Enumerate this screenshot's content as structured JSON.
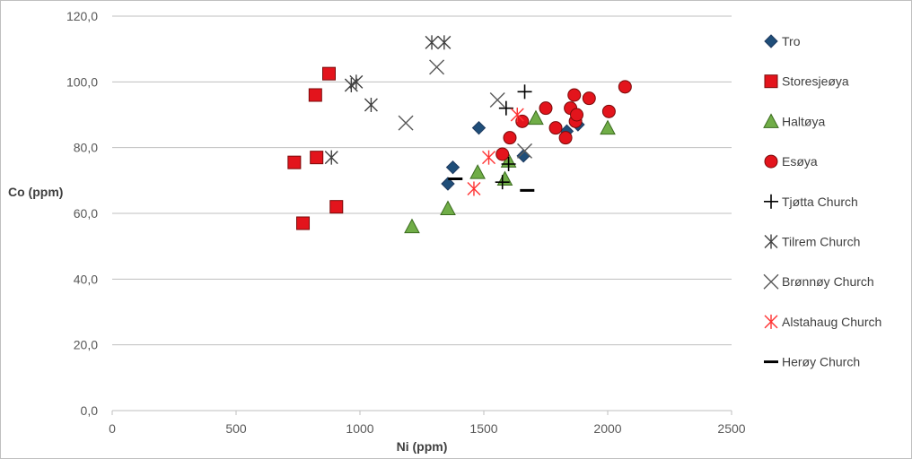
{
  "chart_data": {
    "type": "scatter",
    "title": "",
    "xlabel": "Ni (ppm)",
    "ylabel": "Co (ppm)",
    "xlim": [
      0,
      2500
    ],
    "ylim": [
      0,
      120
    ],
    "x_ticks": [
      0,
      500,
      1000,
      1500,
      2000,
      2500
    ],
    "y_ticks": [
      0,
      20,
      40,
      60,
      80,
      100,
      120
    ],
    "x_tick_labels": [
      "0",
      "500",
      "1000",
      "1500",
      "2000",
      "2500"
    ],
    "y_tick_labels": [
      "0,0",
      "20,0",
      "40,0",
      "60,0",
      "80,0",
      "100,0",
      "120,0"
    ],
    "grid": "horizontal",
    "legend_position": "right",
    "series": [
      {
        "name": "Tro",
        "marker": "diamond",
        "color": "#1f4e79",
        "stroke": "#1f3a5f",
        "points": [
          [
            1355,
            69
          ],
          [
            1375,
            74
          ],
          [
            1480,
            86
          ],
          [
            1660,
            77.5
          ],
          [
            1835,
            85
          ],
          [
            1880,
            87
          ]
        ]
      },
      {
        "name": "Storesjeøya",
        "marker": "square",
        "color": "#e3141c",
        "stroke": "#7a0a0a",
        "points": [
          [
            735,
            75.5
          ],
          [
            770,
            57
          ],
          [
            820,
            96
          ],
          [
            825,
            77
          ],
          [
            875,
            102.5
          ],
          [
            905,
            62
          ]
        ]
      },
      {
        "name": "Haltøya",
        "marker": "triangle",
        "color": "#70ad47",
        "stroke": "#3a6b1e",
        "points": [
          [
            1210,
            56
          ],
          [
            1355,
            61.5
          ],
          [
            1475,
            72.5
          ],
          [
            1585,
            70.5
          ],
          [
            1600,
            76
          ],
          [
            1710,
            89
          ],
          [
            2000,
            86
          ]
        ]
      },
      {
        "name": "Esøya",
        "marker": "circle",
        "color": "#e3141c",
        "stroke": "#7a0a0a",
        "points": [
          [
            1575,
            78
          ],
          [
            1605,
            83
          ],
          [
            1655,
            88
          ],
          [
            1750,
            92
          ],
          [
            1790,
            86
          ],
          [
            1830,
            83
          ],
          [
            1850,
            92
          ],
          [
            1865,
            96
          ],
          [
            1870,
            88
          ],
          [
            1875,
            90
          ],
          [
            1925,
            95
          ],
          [
            2005,
            91
          ],
          [
            2070,
            98.5
          ]
        ]
      },
      {
        "name": "Tjøtta Church",
        "marker": "plus",
        "color": "#000000",
        "stroke": "#000000",
        "points": [
          [
            1575,
            69.5
          ],
          [
            1590,
            92
          ],
          [
            1600,
            75
          ],
          [
            1665,
            97
          ]
        ]
      },
      {
        "name": "Tilrem Church",
        "marker": "asterisk",
        "color": "#404040",
        "stroke": "#404040",
        "points": [
          [
            885,
            77
          ],
          [
            965,
            99
          ],
          [
            985,
            100
          ],
          [
            1045,
            93
          ],
          [
            1290,
            112
          ],
          [
            1340,
            112
          ]
        ]
      },
      {
        "name": "Brønnøy Church",
        "marker": "x",
        "color": "#595959",
        "stroke": "#595959",
        "points": [
          [
            1185,
            87.5
          ],
          [
            1310,
            104.5
          ],
          [
            1555,
            94.5
          ],
          [
            1665,
            79
          ]
        ]
      },
      {
        "name": "Alstahaug Church",
        "marker": "asterisk",
        "color": "#ff3333",
        "stroke": "#ff3333",
        "points": [
          [
            1460,
            67.5
          ],
          [
            1520,
            77
          ],
          [
            1635,
            90
          ]
        ]
      },
      {
        "name": "Herøy Church",
        "marker": "dash",
        "color": "#000000",
        "stroke": "#000000",
        "points": [
          [
            1385,
            70.5
          ],
          [
            1675,
            67
          ]
        ]
      }
    ]
  }
}
